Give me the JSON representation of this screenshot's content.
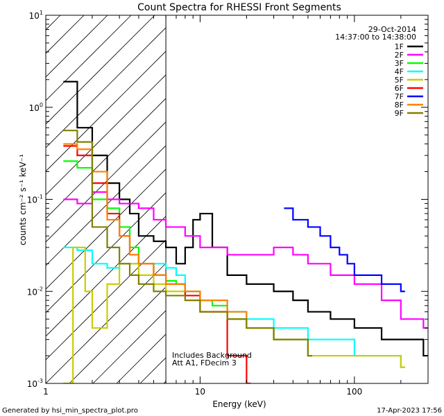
{
  "chart_data": {
    "type": "line",
    "title": "Count Spectra for RHESSI Front Segments",
    "xlabel": "Energy (keV)",
    "ylabel": "counts cm⁻² s⁻¹ keV⁻¹",
    "xscale": "log",
    "yscale": "log",
    "xlim": [
      1.0,
      300.0
    ],
    "ylim": [
      0.001,
      10.0
    ],
    "x_tick_labels": [
      {
        "value": 1,
        "label": "1"
      },
      {
        "value": 10,
        "label": "10"
      },
      {
        "value": 100,
        "label": "100"
      }
    ],
    "y_ticks": [
      {
        "value": 10,
        "mantissa": "10",
        "exp": "1"
      },
      {
        "value": 1,
        "mantissa": "10",
        "exp": "0"
      },
      {
        "value": 0.1,
        "mantissa": "10",
        "exp": "-1"
      },
      {
        "value": 0.01,
        "mantissa": "10",
        "exp": "-2"
      },
      {
        "value": 0.001,
        "mantissa": "10",
        "exp": "-3"
      }
    ],
    "date": "29-Oct-2014",
    "time_range": "14:37:00 to 14:38:00",
    "hatched_region_upper_kev": 6.0,
    "annotations": [
      "Includes Background",
      "Att A1, FDecim 3"
    ],
    "series": [
      {
        "name": "1F",
        "color": "#000000",
        "x": [
          1.3,
          1.6,
          2.0,
          2.5,
          3.0,
          3.5,
          4.0,
          5.0,
          6.0,
          7.0,
          8.0,
          9.0,
          10.0,
          12.0,
          15.0,
          20.0,
          30.0,
          40.0,
          50.0,
          70.0,
          100.0,
          150.0,
          200.0,
          280.0
        ],
        "y": [
          1.9,
          0.6,
          0.3,
          0.15,
          0.1,
          0.07,
          0.04,
          0.035,
          0.03,
          0.02,
          0.03,
          0.06,
          0.07,
          0.03,
          0.015,
          0.012,
          0.01,
          0.008,
          0.006,
          0.005,
          0.004,
          0.003,
          0.003,
          0.002
        ]
      },
      {
        "name": "2F",
        "color": "#ff00ff",
        "x": [
          1.3,
          1.6,
          2.0,
          2.5,
          3.0,
          4.0,
          5.0,
          6.0,
          7.0,
          8.0,
          10.0,
          12.0,
          15.0,
          20.0,
          30.0,
          40.0,
          50.0,
          70.0,
          100.0,
          150.0,
          200.0,
          280.0
        ],
        "y": [
          0.1,
          0.09,
          0.12,
          0.1,
          0.09,
          0.08,
          0.06,
          0.05,
          0.05,
          0.04,
          0.03,
          0.03,
          0.025,
          0.025,
          0.03,
          0.025,
          0.02,
          0.015,
          0.012,
          0.008,
          0.005,
          0.004
        ]
      },
      {
        "name": "3F",
        "color": "#00ff00",
        "x": [
          1.3,
          1.6,
          2.0,
          2.5,
          3.0,
          3.5,
          4.0,
          5.0,
          6.0,
          7.0,
          8.0,
          10.0,
          12.0,
          15.0,
          20.0,
          30.0,
          50.0
        ],
        "y": [
          0.26,
          0.22,
          0.1,
          0.08,
          0.05,
          0.03,
          0.02,
          0.015,
          0.013,
          0.012,
          0.01,
          0.008,
          0.007,
          0.005,
          0.004,
          0.003,
          0.002
        ]
      },
      {
        "name": "4F",
        "color": "#00ffff",
        "x": [
          1.3,
          1.6,
          2.0,
          2.5,
          3.0,
          4.0,
          5.0,
          6.0,
          7.0,
          8.0,
          10.0,
          15.0,
          20.0,
          30.0,
          50.0,
          100.0,
          200.0
        ],
        "y": [
          0.03,
          0.028,
          0.02,
          0.018,
          0.02,
          0.02,
          0.02,
          0.018,
          0.015,
          0.01,
          0.008,
          0.006,
          0.005,
          0.004,
          0.003,
          0.002,
          0.0015
        ]
      },
      {
        "name": "5F",
        "color": "#cccc00",
        "x": [
          1.3,
          1.5,
          1.8,
          2.0,
          2.5,
          3.0,
          4.0,
          5.0,
          6.0,
          8.0,
          10.0,
          15.0,
          20.0,
          30.0,
          50.0,
          100.0,
          200.0
        ],
        "y": [
          0.001,
          0.03,
          0.01,
          0.004,
          0.012,
          0.02,
          0.015,
          0.012,
          0.01,
          0.008,
          0.006,
          0.005,
          0.004,
          0.003,
          0.002,
          0.002,
          0.0015
        ]
      },
      {
        "name": "6F",
        "color": "#ff0000",
        "x": [
          1.3,
          1.6,
          2.0,
          2.5,
          3.0,
          3.5,
          4.0,
          5.0,
          6.0,
          8.0,
          10.0,
          15.0,
          20.0
        ],
        "y": [
          0.38,
          0.3,
          0.15,
          0.07,
          0.04,
          0.025,
          0.02,
          0.015,
          0.012,
          0.009,
          0.006,
          0.002,
          0.001
        ]
      },
      {
        "name": "7F",
        "color": "#0000ff",
        "x": [
          35.0,
          40.0,
          50.0,
          60.0,
          70.0,
          80.0,
          90.0,
          100.0,
          150.0,
          200.0
        ],
        "y": [
          0.08,
          0.06,
          0.05,
          0.04,
          0.03,
          0.025,
          0.02,
          0.015,
          0.012,
          0.01
        ]
      },
      {
        "name": "8F",
        "color": "#ff8000",
        "x": [
          1.3,
          1.6,
          2.0,
          2.5,
          3.0,
          3.5,
          4.0,
          5.0,
          6.0,
          8.0,
          10.0,
          15.0,
          20.0,
          30.0
        ],
        "y": [
          0.4,
          0.35,
          0.2,
          0.06,
          0.04,
          0.025,
          0.02,
          0.015,
          0.012,
          0.01,
          0.008,
          0.006,
          0.004,
          0.003
        ]
      },
      {
        "name": "9F",
        "color": "#808000",
        "x": [
          1.3,
          1.6,
          2.0,
          2.5,
          3.0,
          3.5,
          4.0,
          5.0,
          6.0,
          8.0,
          10.0,
          15.0,
          20.0,
          30.0,
          50.0
        ],
        "y": [
          0.56,
          0.42,
          0.05,
          0.03,
          0.02,
          0.015,
          0.012,
          0.01,
          0.009,
          0.008,
          0.006,
          0.005,
          0.004,
          0.003,
          0.002
        ]
      }
    ]
  },
  "footer": {
    "generator": "Generated by hsi_min_spectra_plot.pro",
    "timestamp": "17-Apr-2023 17:56"
  }
}
